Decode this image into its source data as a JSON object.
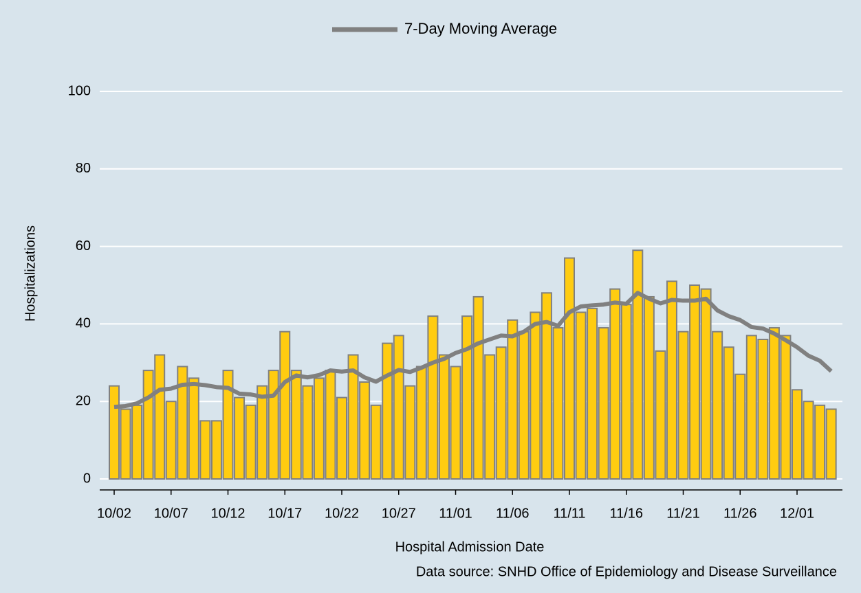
{
  "chart_data": {
    "type": "bar",
    "x_label": "Hospital Admission Date",
    "y_label": "Hospitalizations",
    "source": "Data source: SNHD Office of Epidemiology and Disease Surveillance",
    "categories": [
      "10/02",
      null,
      null,
      null,
      null,
      "10/07",
      null,
      null,
      null,
      null,
      "10/12",
      null,
      null,
      null,
      null,
      "10/17",
      null,
      null,
      null,
      null,
      "10/22",
      null,
      null,
      null,
      null,
      "10/27",
      null,
      null,
      null,
      null,
      "11/01",
      null,
      null,
      null,
      null,
      "11/06",
      null,
      null,
      null,
      null,
      "11/11",
      null,
      null,
      null,
      null,
      "11/16",
      null,
      null,
      null,
      null,
      "11/21",
      null,
      null,
      null,
      null,
      "11/26",
      null,
      null,
      null,
      null,
      "12/01",
      null,
      null,
      null
    ],
    "values": [
      24,
      18,
      19,
      28,
      32,
      20,
      29,
      26,
      15,
      15,
      28,
      21,
      19,
      24,
      28,
      38,
      28,
      24,
      26,
      28,
      21,
      32,
      25,
      19,
      35,
      37,
      24,
      29,
      42,
      32,
      29,
      42,
      47,
      32,
      34,
      41,
      38,
      43,
      48,
      39,
      57,
      43,
      44,
      39,
      49,
      45,
      59,
      47,
      33,
      51,
      38,
      50,
      49,
      38,
      34,
      27,
      37,
      36,
      39,
      37,
      23,
      20,
      19,
      18
    ],
    "color": "#ffcc11",
    "line": {
      "name": "7-Day Moving Average",
      "color": "#808080",
      "values": [
        18.6,
        18.8,
        19.5,
        21,
        23,
        23.3,
        24.3,
        24.5,
        24.2,
        23.7,
        23.5,
        22,
        21.8,
        21.2,
        21.5,
        25,
        26.7,
        26.2,
        26.8,
        28,
        27.7,
        28,
        26.2,
        25.1,
        26.7,
        28.1,
        27.6,
        28.7,
        30,
        31,
        32.5,
        33.5,
        35,
        36,
        37,
        36.8,
        38,
        40,
        40.5,
        39.5,
        43,
        44.5,
        44.8,
        45,
        45.5,
        45.2,
        48,
        46.5,
        45.3,
        46.2,
        46,
        46,
        46.5,
        43.5,
        42,
        41,
        39.2,
        38.8,
        37.5,
        35.8,
        34,
        31.8,
        30.5,
        27.8
      ]
    },
    "ylim": [
      0,
      100
    ],
    "yticks": [
      0,
      20,
      40,
      60,
      80,
      100
    ],
    "grid": true
  }
}
